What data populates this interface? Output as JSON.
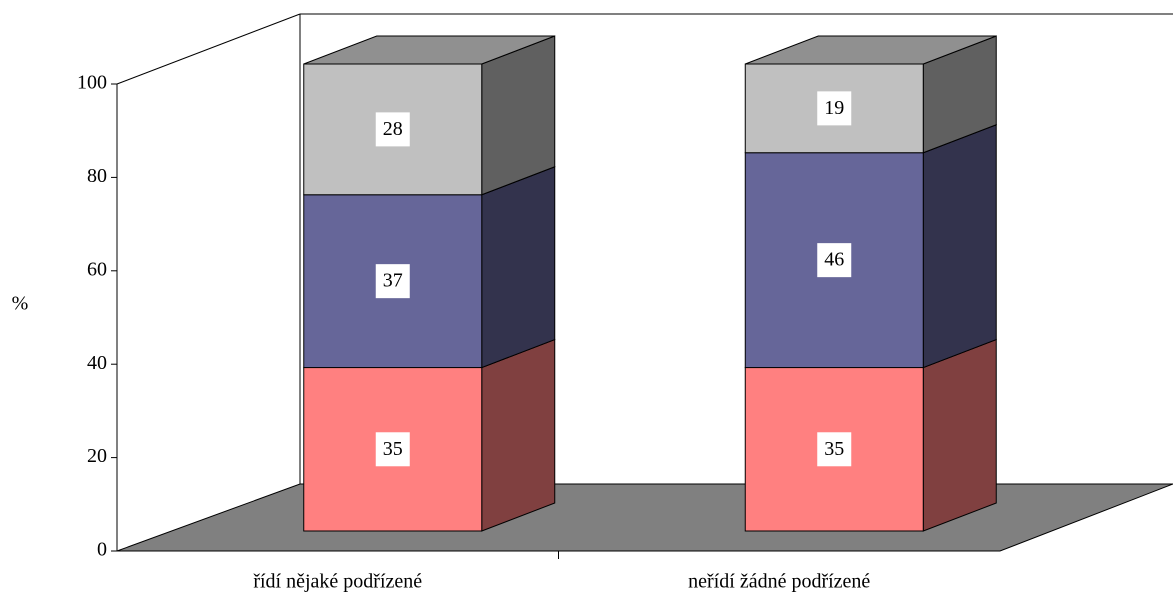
{
  "chart_data": {
    "type": "bar3d_stacked",
    "categories": [
      "řídí nějaké podřízené",
      "neřídí žádné podřízené"
    ],
    "series": [
      {
        "color": "#ff8080",
        "values": [
          35,
          35
        ]
      },
      {
        "color": "#666699",
        "values": [
          37,
          46
        ]
      },
      {
        "color": "#c0c0c0",
        "values": [
          28,
          19
        ]
      }
    ],
    "ylabel": "%",
    "ylim": [
      0,
      100
    ],
    "yticks": [
      0,
      20,
      40,
      60,
      80,
      100
    ]
  }
}
